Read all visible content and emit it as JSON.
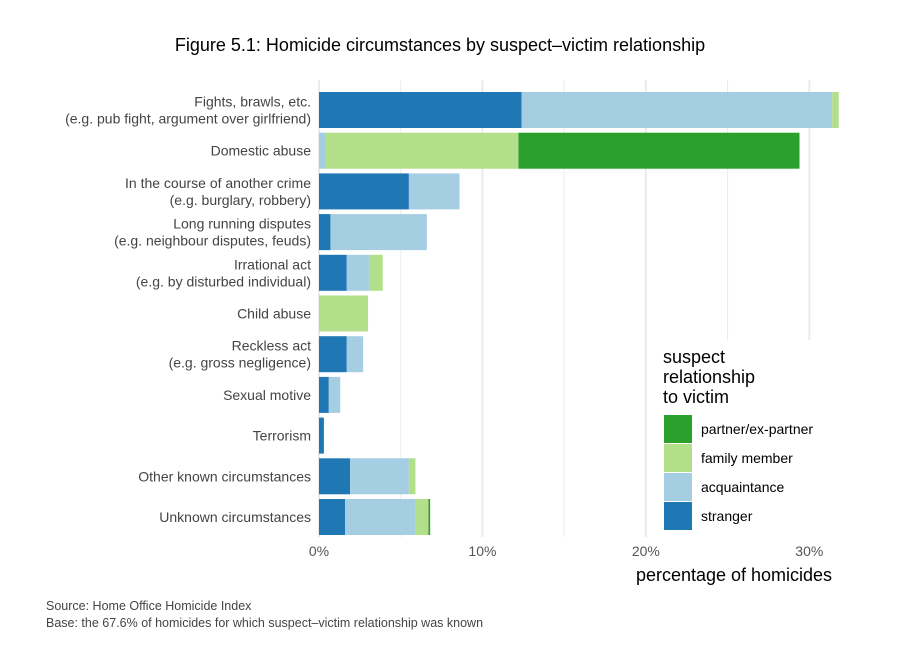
{
  "title": "Figure 5.1: Homicide circumstances by suspect–victim relationship",
  "colors": {
    "partner": "#2ca02c",
    "family": "#b2df8a",
    "acquaintance": "#a6cee3",
    "stranger": "#1f78b4",
    "grid": "#ebebeb"
  },
  "legend": {
    "title_lines": [
      "suspect",
      "relationship",
      "to victim"
    ],
    "items": [
      {
        "key": "partner",
        "label": "partner/ex-partner"
      },
      {
        "key": "family",
        "label": "family member"
      },
      {
        "key": "acquaintance",
        "label": "acquaintance"
      },
      {
        "key": "stranger",
        "label": "stranger"
      }
    ]
  },
  "source": "Source: Home Office Homicide Index",
  "base": "Base: the 67.6% of homicides for which suspect–victim relationship was known",
  "chart_data": {
    "type": "bar",
    "orientation": "horizontal",
    "stacked": true,
    "title": "Figure 5.1: Homicide circumstances by suspect–victim relationship",
    "xlabel": "percentage of homicides",
    "ylabel": "",
    "xlim": [
      0,
      32
    ],
    "x_ticks": [
      0,
      10,
      20,
      30
    ],
    "x_tick_labels": [
      "0%",
      "10%",
      "20%",
      "30%"
    ],
    "grid": true,
    "legend_position": "right",
    "categories": [
      {
        "key": "fights",
        "lines": [
          "Fights, brawls, etc.",
          "(e.g. pub fight, argument over girlfriend)"
        ]
      },
      {
        "key": "domestic",
        "lines": [
          "Domestic abuse"
        ]
      },
      {
        "key": "crime",
        "lines": [
          "In the course of another crime",
          "(e.g. burglary, robbery)"
        ]
      },
      {
        "key": "disputes",
        "lines": [
          "Long running disputes",
          "(e.g. neighbour disputes, feuds)"
        ]
      },
      {
        "key": "irrational",
        "lines": [
          "Irrational act",
          "(e.g. by disturbed individual)"
        ]
      },
      {
        "key": "child",
        "lines": [
          "Child abuse"
        ]
      },
      {
        "key": "reckless",
        "lines": [
          "Reckless act",
          "(e.g. gross negligence)"
        ]
      },
      {
        "key": "sexual",
        "lines": [
          "Sexual motive"
        ]
      },
      {
        "key": "terrorism",
        "lines": [
          "Terrorism"
        ]
      },
      {
        "key": "other",
        "lines": [
          "Other known circumstances"
        ]
      },
      {
        "key": "unknown",
        "lines": [
          "Unknown circumstances"
        ]
      }
    ],
    "series": [
      {
        "name": "stranger",
        "color_key": "stranger",
        "values": [
          12.4,
          0.0,
          5.5,
          0.7,
          1.7,
          0.0,
          1.7,
          0.6,
          0.3,
          1.9,
          1.6
        ]
      },
      {
        "name": "acquaintance",
        "color_key": "acquaintance",
        "values": [
          19.0,
          0.4,
          3.1,
          5.9,
          1.4,
          0.0,
          1.0,
          0.7,
          0.0,
          3.6,
          4.3
        ]
      },
      {
        "name": "family member",
        "color_key": "family",
        "values": [
          0.4,
          11.8,
          0.0,
          0.0,
          0.8,
          3.0,
          0.0,
          0.0,
          0.0,
          0.4,
          0.8
        ]
      },
      {
        "name": "partner/ex-partner",
        "color_key": "partner",
        "values": [
          0.0,
          17.2,
          0.0,
          0.0,
          0.0,
          0.0,
          0.0,
          0.0,
          0.0,
          0.0,
          0.1
        ]
      }
    ]
  }
}
